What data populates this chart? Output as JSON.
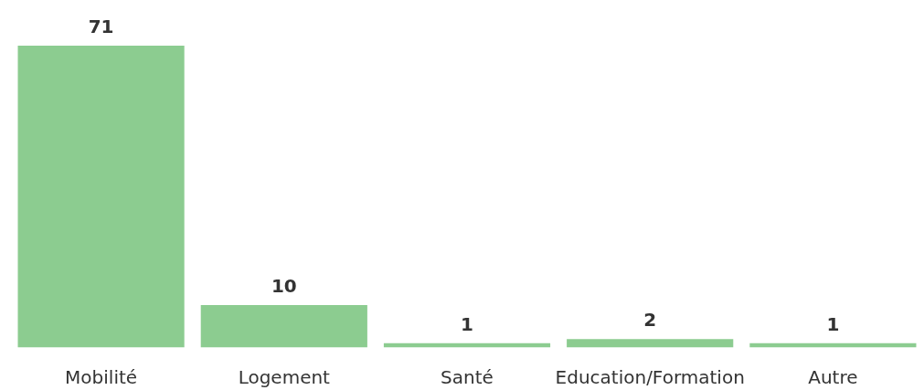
{
  "chart_data": {
    "type": "bar",
    "categories": [
      "Mobilité",
      "Logement",
      "Santé",
      "Education/Formation",
      "Autre"
    ],
    "values": [
      71,
      10,
      1,
      2,
      1
    ],
    "color": "#8ccc90",
    "data_labels": true,
    "tick_labels": "x",
    "grid": false,
    "legend": false
  }
}
